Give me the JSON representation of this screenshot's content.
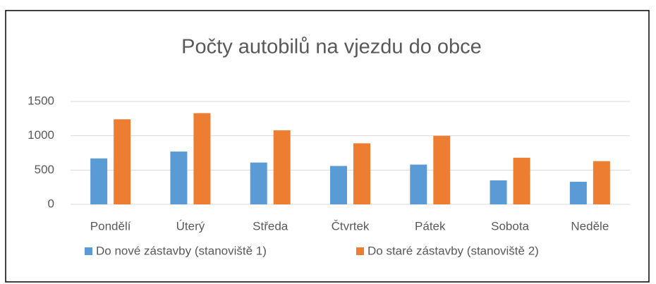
{
  "chart_data": {
    "type": "bar",
    "title": "Počty autobilů na vjezdu do obce",
    "categories": [
      "Pondělí",
      "Úterý",
      "Středa",
      "Čtvrtek",
      "Pátek",
      "Sobota",
      "Neděle"
    ],
    "series": [
      {
        "name": "Do nové zástavby (stanoviště 1)",
        "color": "#5b9bd5",
        "values": [
          670,
          770,
          610,
          560,
          580,
          350,
          330
        ]
      },
      {
        "name": "Do staré zástavby (stanoviště 2)",
        "color": "#ed7d31",
        "values": [
          1240,
          1330,
          1080,
          890,
          1000,
          680,
          630
        ]
      }
    ],
    "ylim": [
      0,
      1500
    ],
    "yticks": [
      0,
      500,
      1000,
      1500
    ],
    "grid": true,
    "legend": "bottom"
  }
}
